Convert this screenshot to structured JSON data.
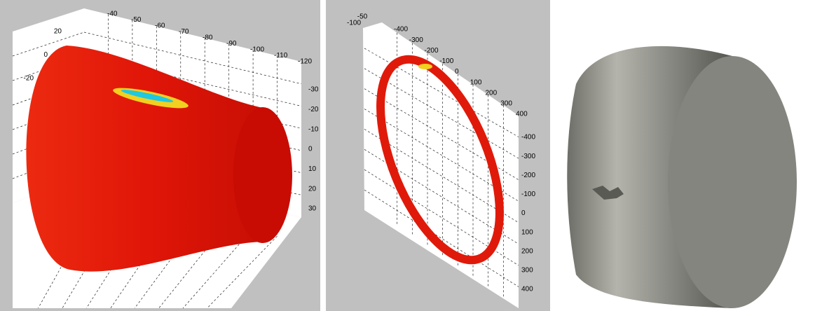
{
  "panels": [
    {
      "top_axis": [
        -40,
        -50,
        -60,
        -70,
        -80,
        -90,
        -100,
        -110,
        -120
      ],
      "left_axis": [
        20,
        0,
        -20
      ],
      "right_axis": [
        -30,
        -20,
        -10,
        0,
        10,
        20,
        30
      ]
    },
    {
      "top_axis": [
        -100,
        -50,
        -400,
        -300,
        -200,
        -100,
        0,
        100,
        200,
        300,
        400
      ],
      "right_axis": [
        -400,
        -300,
        -200,
        -100,
        0,
        100,
        200,
        300,
        400
      ]
    }
  ]
}
